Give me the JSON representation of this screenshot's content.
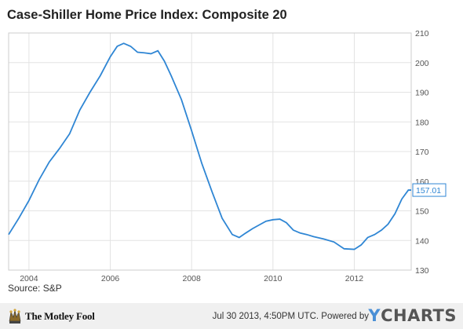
{
  "chart_data": {
    "type": "line",
    "title": "Case-Shiller Home Price Index: Composite 20",
    "xlabel": "",
    "ylabel": "",
    "x_range": [
      2003.5,
      2013.4
    ],
    "ylim": [
      130,
      210
    ],
    "x_ticks": [
      "2004",
      "2006",
      "2008",
      "2010",
      "2012"
    ],
    "y_ticks": [
      "130",
      "140",
      "150",
      "160",
      "170",
      "180",
      "190",
      "200",
      "210"
    ],
    "grid": true,
    "last_value_label": "157.01",
    "series": [
      {
        "name": "",
        "color": "#2f86d4",
        "x": [
          2003.5,
          2003.75,
          2004.0,
          2004.25,
          2004.5,
          2004.75,
          2005.0,
          2005.25,
          2005.5,
          2005.75,
          2006.0,
          2006.17,
          2006.33,
          2006.5,
          2006.67,
          2006.83,
          2007.0,
          2007.17,
          2007.33,
          2007.5,
          2007.75,
          2008.0,
          2008.25,
          2008.5,
          2008.75,
          2009.0,
          2009.17,
          2009.33,
          2009.5,
          2009.67,
          2009.83,
          2010.0,
          2010.17,
          2010.33,
          2010.5,
          2010.67,
          2010.83,
          2011.0,
          2011.25,
          2011.5,
          2011.75,
          2012.0,
          2012.17,
          2012.33,
          2012.5,
          2012.67,
          2012.83,
          2013.0,
          2013.17,
          2013.33,
          2013.4
        ],
        "values": [
          142.0,
          147.5,
          153.5,
          160.5,
          166.5,
          171.0,
          176.0,
          184.0,
          190.0,
          195.5,
          202.0,
          205.5,
          206.5,
          205.5,
          203.5,
          203.3,
          203.0,
          204.0,
          200.5,
          195.5,
          187.5,
          177.0,
          166.0,
          156.5,
          147.5,
          142.0,
          141.0,
          142.5,
          144.0,
          145.3,
          146.5,
          147.0,
          147.2,
          146.0,
          143.5,
          142.5,
          142.0,
          141.3,
          140.5,
          139.5,
          137.2,
          137.0,
          138.5,
          141.0,
          142.0,
          143.5,
          145.5,
          149.0,
          154.0,
          157.0,
          157.01
        ]
      }
    ]
  },
  "source": "Source: S&P",
  "footer": {
    "brand": "The Motley Fool",
    "timestamp": "Jul 30 2013, 4:50PM UTC.  Powered by",
    "ycharts_y": "Y",
    "ycharts_rest": "CHARTS"
  }
}
